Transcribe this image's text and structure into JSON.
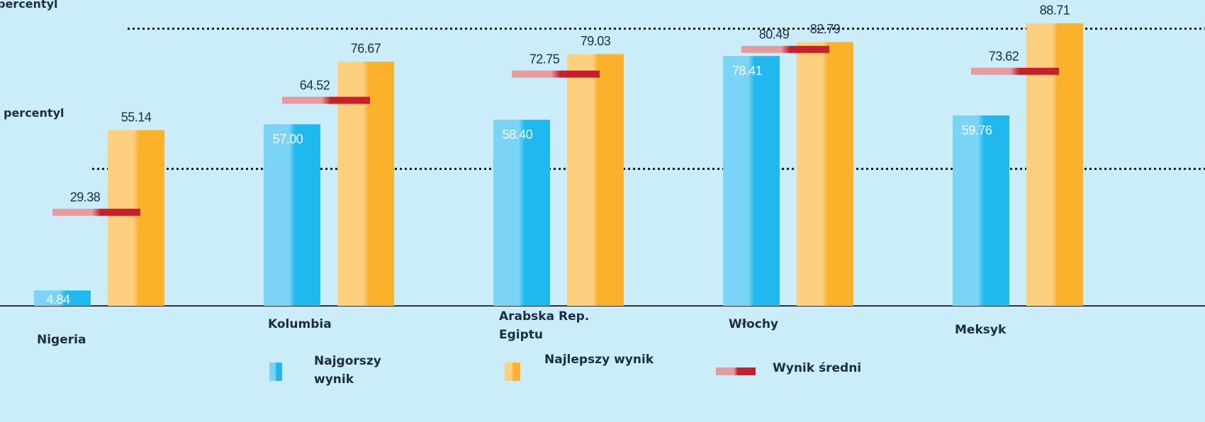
{
  "chart_data": {
    "type": "bar",
    "categories": [
      "Nigeria",
      "Kolumbia",
      "Arabska Rep. Egiptu",
      "Włochy",
      "Meksyk"
    ],
    "series": [
      {
        "name": "Najgorszy wynik",
        "color": "#1fb8ef",
        "values": [
          4.84,
          57,
          58.4,
          78.41,
          59.76
        ],
        "value_labels": [
          "4.84",
          "57.00",
          "58.40",
          "78.41",
          "59.76"
        ]
      },
      {
        "name": "Najlepszy wynik",
        "color": "#fbb12a",
        "values": [
          55.14,
          76.67,
          79.03,
          82.79,
          88.71
        ]
      },
      {
        "name": "Wynik średni",
        "type": "marker",
        "color": "#c8202a",
        "values": [
          29.38,
          64.52,
          72.75,
          80.49,
          73.62
        ]
      }
    ],
    "ylim": [
      0,
      96
    ],
    "reference_lines": [
      {
        "label": "y percentyl",
        "value": 87
      },
      {
        "label": "percentyl",
        "value": 43
      }
    ]
  }
}
